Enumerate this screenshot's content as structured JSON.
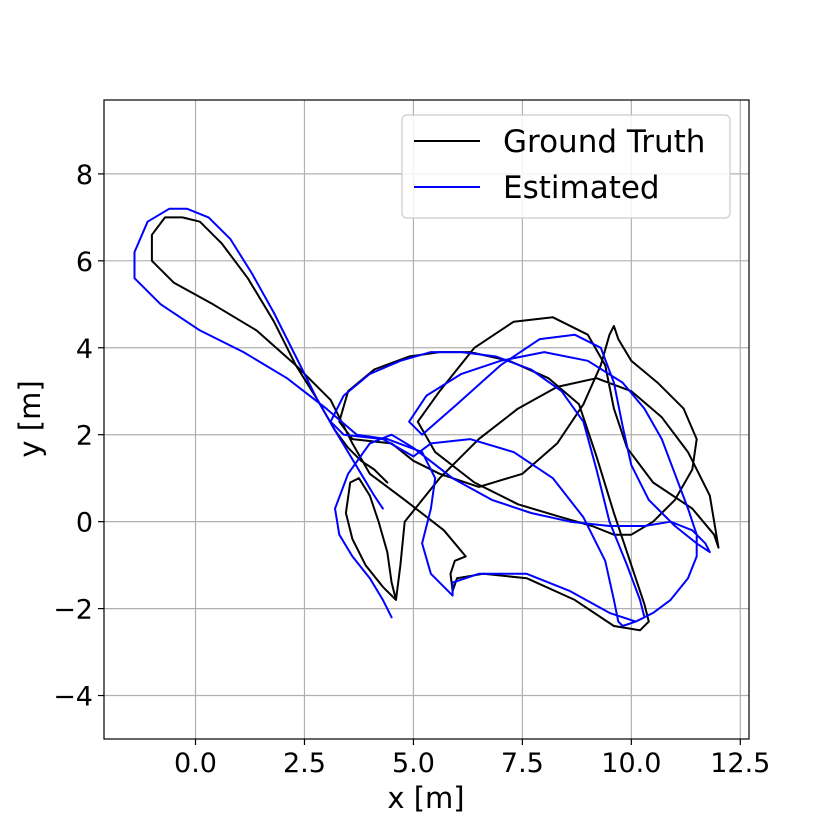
{
  "chart_data": {
    "type": "line",
    "xlabel": "x [m]",
    "ylabel": "y [m]",
    "xlim": [
      -2.1,
      12.7
    ],
    "ylim": [
      -5.0,
      9.7
    ],
    "xticks": [
      0.0,
      2.5,
      5.0,
      7.5,
      10.0,
      12.5
    ],
    "xtick_labels": [
      "0.0",
      "2.5",
      "5.0",
      "7.5",
      "10.0",
      "12.5"
    ],
    "yticks": [
      -4,
      -2,
      0,
      2,
      4,
      6,
      8
    ],
    "ytick_labels": [
      "−4",
      "−2",
      "0",
      "2",
      "4",
      "6",
      "8"
    ],
    "grid": true,
    "legend_position": "top-right",
    "series": [
      {
        "name": "Ground Truth",
        "color": "#000000",
        "x": [
          4.6,
          4.5,
          4.4,
          4.2,
          4.0,
          3.75,
          3.55,
          3.45,
          3.6,
          3.9,
          4.3,
          4.6,
          4.7,
          4.8,
          5.6,
          6.5,
          7.4,
          8.3,
          9.2,
          10.0,
          10.7,
          11.3,
          11.8,
          12.0,
          11.9,
          11.4,
          10.5,
          9.9,
          9.6,
          9.4,
          9.0,
          8.2,
          7.3,
          6.4,
          5.6,
          5.1,
          5.5,
          6.4,
          7.4,
          8.4,
          9.1,
          9.6,
          10.0,
          10.5,
          11.0,
          11.4,
          11.5,
          11.2,
          10.6,
          10.0,
          9.7,
          9.6,
          9.5,
          9.3,
          8.9,
          8.3,
          7.5,
          6.5,
          5.6,
          5.0,
          4.5,
          3.6,
          3.3,
          3.5,
          4.1,
          4.9,
          5.6,
          6.3,
          7.2,
          8.1,
          8.8,
          9.2,
          9.6,
          10.0,
          10.3,
          10.4,
          10.2,
          9.6,
          8.7,
          7.6,
          6.6,
          6.0,
          5.9,
          5.85,
          5.95,
          6.2,
          5.7,
          4.8,
          4.0,
          3.6,
          3.1,
          2.3,
          1.4,
          0.4,
          -0.5,
          -1.0,
          -1.0,
          -0.7,
          -0.3,
          0.1,
          0.6,
          1.2,
          1.8,
          2.3,
          2.8,
          3.2,
          3.5,
          3.8,
          4.1,
          4.4
        ],
        "y": [
          -1.8,
          -1.4,
          -0.7,
          0.0,
          0.6,
          1.0,
          0.9,
          0.2,
          -0.4,
          -1.0,
          -1.5,
          -1.8,
          -1.0,
          0.0,
          1.0,
          1.9,
          2.6,
          3.1,
          3.3,
          3.0,
          2.4,
          1.6,
          0.6,
          -0.6,
          -0.3,
          0.3,
          0.9,
          1.7,
          2.6,
          3.6,
          4.3,
          4.7,
          4.6,
          4.0,
          3.0,
          2.3,
          1.6,
          0.9,
          0.4,
          0.1,
          -0.1,
          -0.3,
          -0.3,
          0.0,
          0.5,
          1.2,
          1.9,
          2.6,
          3.2,
          3.7,
          4.2,
          4.5,
          4.3,
          3.6,
          2.7,
          1.8,
          1.1,
          0.8,
          1.1,
          1.4,
          1.8,
          1.9,
          2.3,
          3.0,
          3.5,
          3.8,
          3.9,
          3.9,
          3.7,
          3.3,
          2.7,
          1.5,
          0.2,
          -1.0,
          -1.9,
          -2.3,
          -2.5,
          -2.4,
          -1.8,
          -1.3,
          -1.2,
          -1.3,
          -1.6,
          -1.2,
          -0.9,
          -0.8,
          -0.2,
          0.5,
          1.1,
          1.8,
          2.8,
          3.6,
          4.4,
          5.0,
          5.5,
          6.0,
          6.6,
          7.0,
          7.0,
          6.9,
          6.4,
          5.6,
          4.6,
          3.6,
          2.8,
          2.1,
          1.7,
          1.4,
          1.2,
          0.9
        ]
      },
      {
        "name": "Estimated",
        "color": "#0000ff",
        "x": [
          4.5,
          4.3,
          4.0,
          3.6,
          3.3,
          3.2,
          3.5,
          4.0,
          4.5,
          5.0,
          5.9,
          6.8,
          7.7,
          8.6,
          9.5,
          10.3,
          10.9,
          11.4,
          11.7,
          11.8,
          11.5,
          11.0,
          10.4,
          10.0,
          9.8,
          9.6,
          9.3,
          8.7,
          7.9,
          7.0,
          6.0,
          5.2,
          4.9,
          5.3,
          6.1,
          7.0,
          8.0,
          9.0,
          9.8,
          10.3,
          10.7,
          11.0,
          11.3,
          11.5,
          11.5,
          11.3,
          10.9,
          10.5,
          10.1,
          9.8,
          9.7,
          9.6,
          9.4,
          8.9,
          8.2,
          7.3,
          6.3,
          5.4,
          5.0,
          4.3,
          3.4,
          3.1,
          3.4,
          4.0,
          4.7,
          5.4,
          6.1,
          6.9,
          7.7,
          8.4,
          8.9,
          9.2,
          9.5,
          9.9,
          10.2,
          10.3,
          10.1,
          9.5,
          8.6,
          7.6,
          6.5,
          5.9,
          5.9,
          5.4,
          5.2,
          5.4,
          5.5,
          5.2,
          4.4,
          3.7,
          3.0,
          2.1,
          1.1,
          0.1,
          -0.8,
          -1.4,
          -1.4,
          -1.1,
          -0.6,
          -0.2,
          0.3,
          0.8,
          1.3,
          1.8,
          2.3,
          2.8,
          3.2,
          3.5,
          3.8,
          4.1,
          4.3
        ],
        "y": [
          -2.2,
          -1.8,
          -1.3,
          -0.8,
          -0.3,
          0.3,
          1.1,
          1.8,
          2.0,
          1.7,
          1.0,
          0.5,
          0.2,
          0.0,
          -0.1,
          -0.1,
          0.0,
          -0.2,
          -0.5,
          -0.7,
          -0.5,
          -0.1,
          0.5,
          1.3,
          2.2,
          3.2,
          4.0,
          4.3,
          4.2,
          3.6,
          2.7,
          2.0,
          2.3,
          2.9,
          3.4,
          3.7,
          3.9,
          3.7,
          3.2,
          2.6,
          1.9,
          1.1,
          0.3,
          -0.3,
          -0.8,
          -1.3,
          -1.8,
          -2.1,
          -2.3,
          -2.4,
          -2.3,
          -1.8,
          -0.9,
          0.1,
          1.0,
          1.6,
          1.9,
          1.8,
          1.5,
          1.9,
          2.0,
          2.3,
          2.9,
          3.4,
          3.7,
          3.9,
          3.9,
          3.8,
          3.5,
          3.0,
          2.3,
          1.2,
          0.0,
          -1.0,
          -1.8,
          -2.2,
          -2.3,
          -2.1,
          -1.6,
          -1.2,
          -1.2,
          -1.4,
          -1.7,
          -1.2,
          -0.5,
          0.3,
          1.0,
          1.6,
          1.9,
          2.0,
          2.6,
          3.3,
          3.9,
          4.4,
          5.0,
          5.6,
          6.2,
          6.9,
          7.2,
          7.2,
          7.0,
          6.5,
          5.7,
          4.8,
          3.8,
          2.8,
          2.1,
          1.6,
          1.1,
          0.6,
          0.3
        ]
      }
    ]
  }
}
